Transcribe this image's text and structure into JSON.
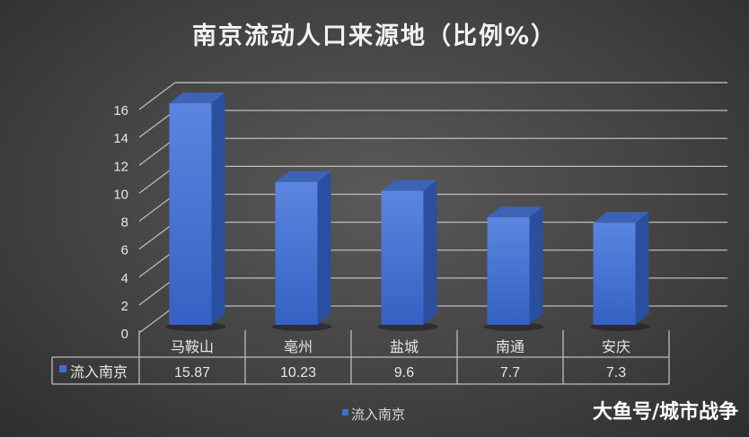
{
  "chart_data": {
    "type": "bar",
    "style": "3d-column with data table",
    "title": "南京流动人口来源地（比例%）",
    "categories": [
      "马鞍山",
      "亳州",
      "盐城",
      "南通",
      "安庆"
    ],
    "series": [
      {
        "name": "流入南京",
        "values": [
          15.87,
          10.23,
          9.6,
          7.7,
          7.3
        ],
        "color": "#3f6fd0"
      }
    ],
    "ylim": [
      0,
      16
    ],
    "yticks": [
      0,
      2,
      4,
      6,
      8,
      10,
      12,
      14,
      16
    ],
    "grid": true,
    "legend": "bottom",
    "data_table": true
  },
  "watermark": "大鱼号/城市战争"
}
